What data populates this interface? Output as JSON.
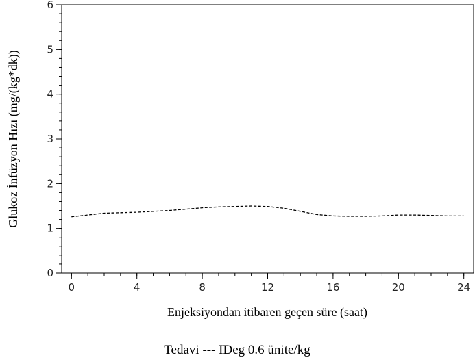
{
  "chart_data": {
    "type": "line",
    "title": "",
    "xlabel": "Enjeksiyondan itibaren geçen süre (saat)",
    "ylabel": "Glukoz İnfüzyon Hızı (mg/(kg*dk))",
    "xlim": [
      -0.6,
      24.6
    ],
    "ylim": [
      0,
      6
    ],
    "x_ticks": [
      0,
      4,
      8,
      12,
      16,
      20,
      24
    ],
    "x_minor_step": 1,
    "y_ticks": [
      0,
      1,
      2,
      3,
      4,
      5,
      6
    ],
    "y_minor_step": 0.2,
    "grid": false,
    "legend_position": "bottom-center",
    "legend_text": "Tedavi --- IDeg 0.6 ünite/kg",
    "series": [
      {
        "line_style": "dashed",
        "color": "#000000",
        "x": [
          0,
          1,
          2,
          3,
          4,
          5,
          6,
          7,
          8,
          9,
          10,
          11,
          12,
          13,
          14,
          15,
          16,
          17,
          18,
          19,
          20,
          21,
          22,
          23,
          24
        ],
        "y": [
          1.26,
          1.3,
          1.34,
          1.35,
          1.36,
          1.38,
          1.4,
          1.43,
          1.46,
          1.48,
          1.49,
          1.5,
          1.49,
          1.45,
          1.38,
          1.31,
          1.28,
          1.27,
          1.27,
          1.28,
          1.3,
          1.3,
          1.29,
          1.28,
          1.28
        ]
      }
    ]
  }
}
